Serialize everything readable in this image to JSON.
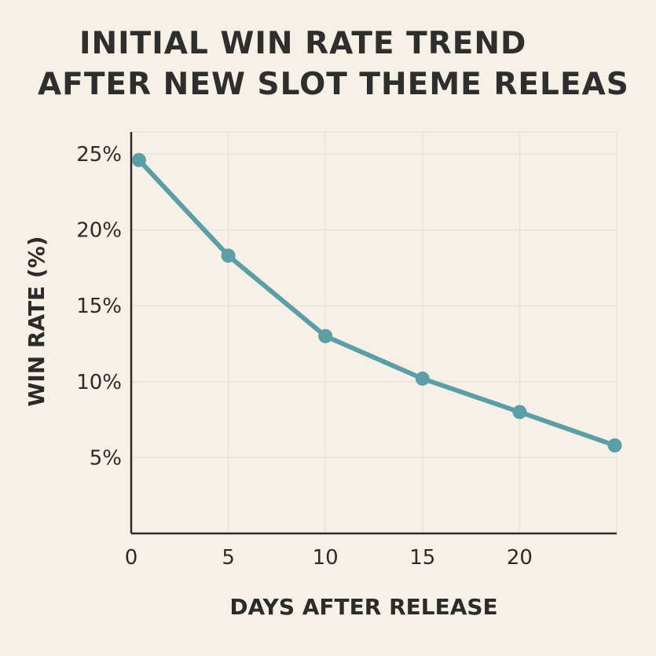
{
  "chart_data": {
    "type": "line",
    "title_lines": [
      "INITIAL WIN RATE TREND",
      "AFTER NEW SLOT THEME RELEAS"
    ],
    "xlabel": "DAYS AFTER RELEASE",
    "ylabel": "WIN RATE (%)",
    "x_ticks": [
      "0",
      "5",
      "10",
      "15",
      "20"
    ],
    "y_ticks": [
      "25%",
      "20%",
      "15%",
      "10%",
      "5%"
    ],
    "xlim": [
      0,
      25
    ],
    "ylim": [
      0,
      25
    ],
    "grid": true,
    "series": [
      {
        "x": [
          0.4,
          5,
          10,
          15,
          20,
          24.9
        ],
        "y": [
          24.6,
          18.3,
          13.0,
          10.2,
          8.0,
          5.8
        ],
        "color": "#5b9ea6"
      }
    ],
    "colors": {
      "background": "#f6f0e6",
      "grid": "#e6e0d6",
      "axis": "#2b2b2b",
      "line": "#5b9ea6"
    }
  }
}
